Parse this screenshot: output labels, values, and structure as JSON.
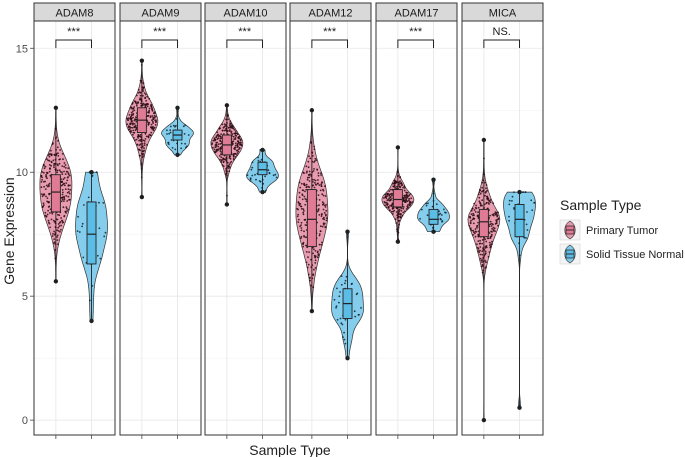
{
  "chart_data": {
    "type": "violin",
    "xlabel": "Sample Type",
    "ylabel": "Gene Expression",
    "ylim": [
      -0.6,
      16.1
    ],
    "yticks": [
      0,
      5,
      10,
      15
    ],
    "grid": true,
    "legend": {
      "title": "Sample Type",
      "placement": "right",
      "entries": [
        {
          "name": "Primary Tumor",
          "color": "#e07b96"
        },
        {
          "name": "Solid Tissue Normal",
          "color": "#5bbce6"
        }
      ]
    },
    "panels": [
      {
        "gene": "ADAM8",
        "significance": "***",
        "groups": [
          {
            "name": "Primary Tumor",
            "min": 5.6,
            "q1": 8.4,
            "median": 9.2,
            "q3": 9.9,
            "max": 12.6,
            "n": 280,
            "mode": 9.2,
            "spread": 1.2
          },
          {
            "name": "Solid Tissue Normal",
            "min": 4.0,
            "q1": 6.3,
            "median": 7.5,
            "q3": 8.8,
            "max": 10.0,
            "n": 40,
            "mode": 7.6,
            "spread": 1.6
          }
        ]
      },
      {
        "gene": "ADAM9",
        "significance": "***",
        "groups": [
          {
            "name": "Primary Tumor",
            "min": 9.0,
            "q1": 11.6,
            "median": 12.1,
            "q3": 12.6,
            "max": 14.5,
            "n": 280,
            "mode": 12.1,
            "spread": 0.8
          },
          {
            "name": "Solid Tissue Normal",
            "min": 10.7,
            "q1": 11.3,
            "median": 11.5,
            "q3": 11.7,
            "max": 12.6,
            "n": 40,
            "mode": 11.5,
            "spread": 0.4
          }
        ]
      },
      {
        "gene": "ADAM10",
        "significance": "***",
        "groups": [
          {
            "name": "Primary Tumor",
            "min": 8.7,
            "q1": 10.7,
            "median": 11.1,
            "q3": 11.5,
            "max": 12.7,
            "n": 280,
            "mode": 11.1,
            "spread": 0.6
          },
          {
            "name": "Solid Tissue Normal",
            "min": 9.2,
            "q1": 9.9,
            "median": 10.1,
            "q3": 10.4,
            "max": 10.9,
            "n": 40,
            "mode": 10.1,
            "spread": 0.4
          }
        ]
      },
      {
        "gene": "ADAM12",
        "significance": "***",
        "groups": [
          {
            "name": "Primary Tumor",
            "min": 4.4,
            "q1": 7.0,
            "median": 8.1,
            "q3": 9.3,
            "max": 12.5,
            "n": 280,
            "mode": 8.2,
            "spread": 1.5
          },
          {
            "name": "Solid Tissue Normal",
            "min": 2.5,
            "q1": 4.1,
            "median": 4.7,
            "q3": 5.3,
            "max": 7.6,
            "n": 40,
            "mode": 4.7,
            "spread": 0.9
          }
        ]
      },
      {
        "gene": "ADAM17",
        "significance": "***",
        "groups": [
          {
            "name": "Primary Tumor",
            "min": 7.2,
            "q1": 8.6,
            "median": 8.9,
            "q3": 9.3,
            "max": 11.0,
            "n": 260,
            "mode": 8.9,
            "spread": 0.5
          },
          {
            "name": "Solid Tissue Normal",
            "min": 7.6,
            "q1": 7.9,
            "median": 8.1,
            "q3": 8.5,
            "max": 9.7,
            "n": 35,
            "mode": 8.2,
            "spread": 0.4
          }
        ]
      },
      {
        "gene": "MICA",
        "significance": "NS.",
        "groups": [
          {
            "name": "Primary Tumor",
            "min": 0.0,
            "q1": 7.4,
            "median": 8.0,
            "q3": 8.5,
            "max": 11.3,
            "n": 260,
            "mode": 8.0,
            "spread": 0.9
          },
          {
            "name": "Solid Tissue Normal",
            "min": 0.5,
            "q1": 7.4,
            "median": 8.1,
            "q3": 8.7,
            "max": 9.2,
            "n": 40,
            "mode": 8.2,
            "spread": 0.8
          }
        ]
      }
    ]
  }
}
